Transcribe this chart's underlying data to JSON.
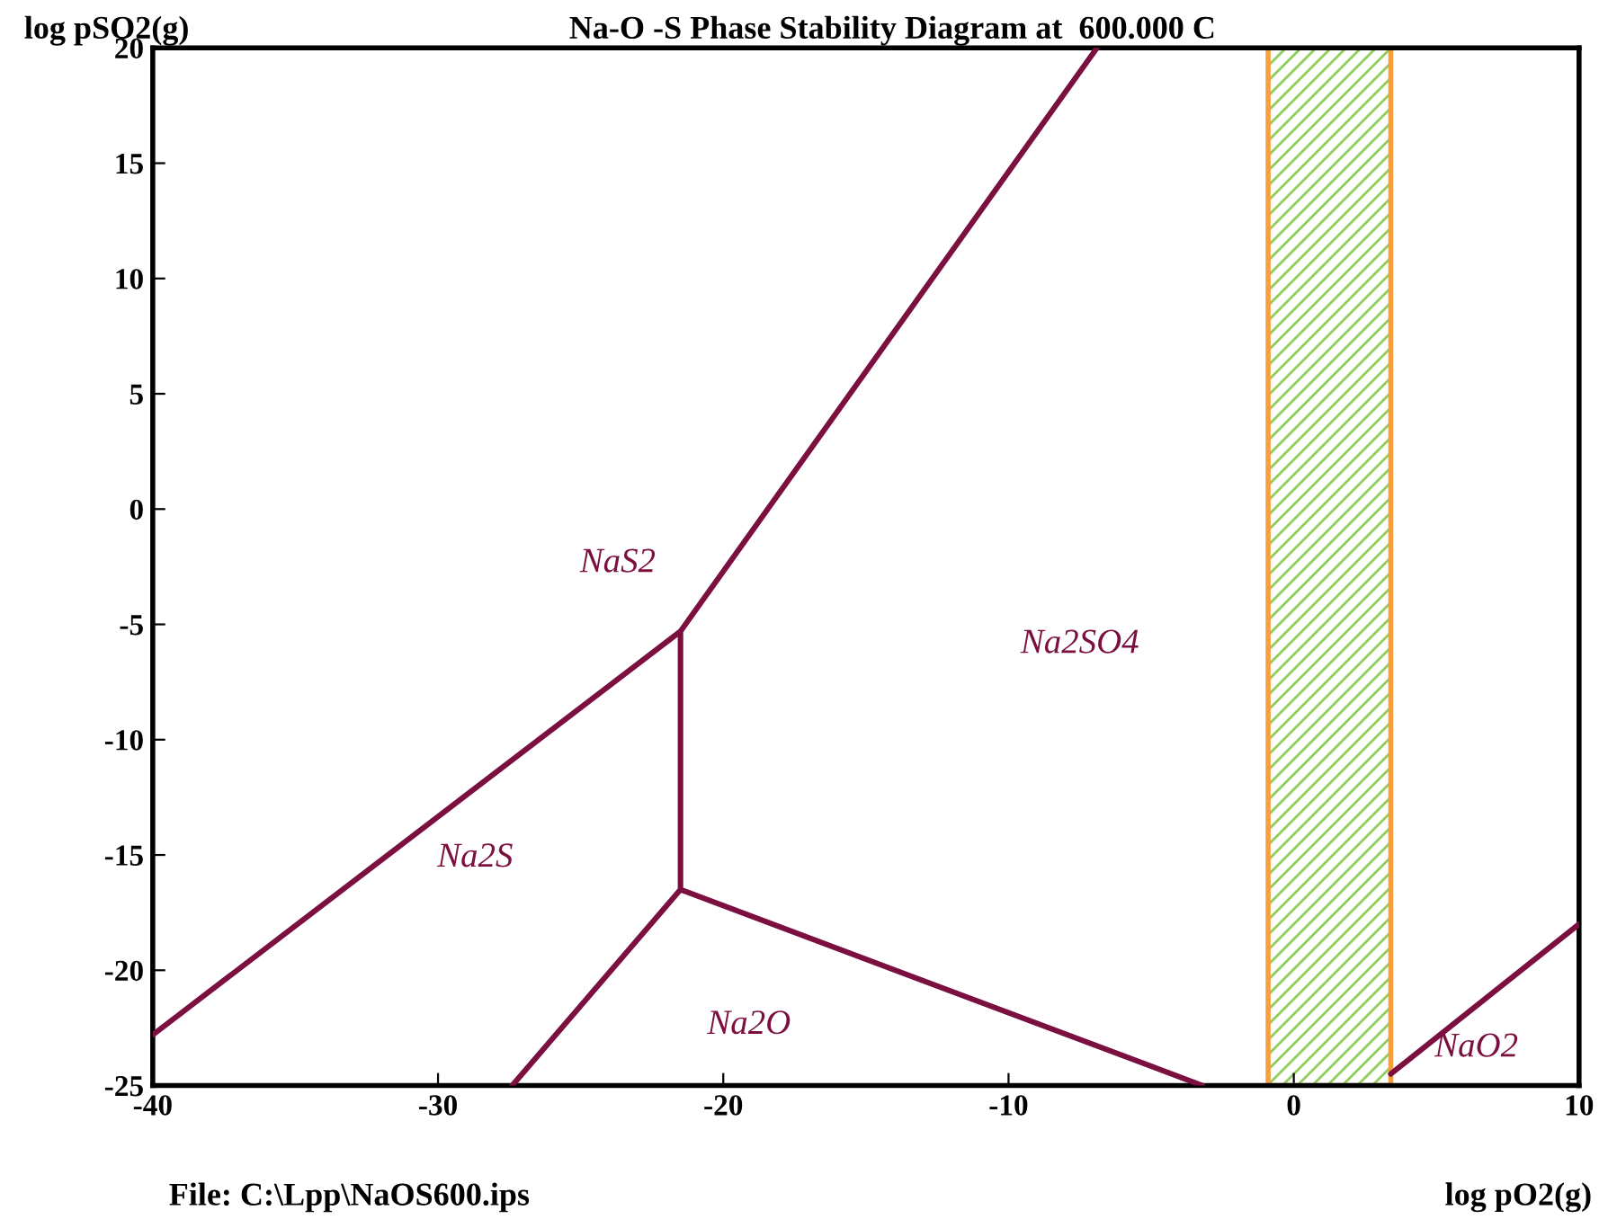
{
  "chart_data": {
    "type": "line",
    "title": "Na-O -S Phase Stability Diagram at  600.000 C",
    "xlabel": "log pO2(g)",
    "ylabel": "log pSO2(g)",
    "xlim": [
      -40,
      10
    ],
    "ylim": [
      -25,
      20
    ],
    "xticks": [
      -40,
      -30,
      -20,
      -10,
      0,
      10
    ],
    "yticks": [
      -25,
      -20,
      -15,
      -10,
      -5,
      0,
      5,
      10,
      15,
      20
    ],
    "grid": false,
    "legend": false,
    "series": [
      {
        "color": "#7b1040",
        "x": [
          -40,
          -21.5,
          -6.9,
          null,
          -21.5,
          -21.5,
          null,
          -27.4,
          -21.5,
          -3.2,
          null,
          3.4,
          10
        ],
        "values": [
          -22.8,
          -5.3,
          20,
          null,
          -5.3,
          -16.5,
          null,
          -25,
          -16.5,
          -25,
          null,
          -24.5,
          -18
        ]
      }
    ],
    "bands": [
      {
        "axis": "x",
        "from": -0.9,
        "to": 3.4,
        "color": "#8fce5a"
      }
    ],
    "annotations": [
      "NaS2",
      "Na2SO4",
      "Na2S",
      "Na2O",
      "NaO2",
      "File: C:\\Lpp\\NaOS600.ips"
    ]
  }
}
